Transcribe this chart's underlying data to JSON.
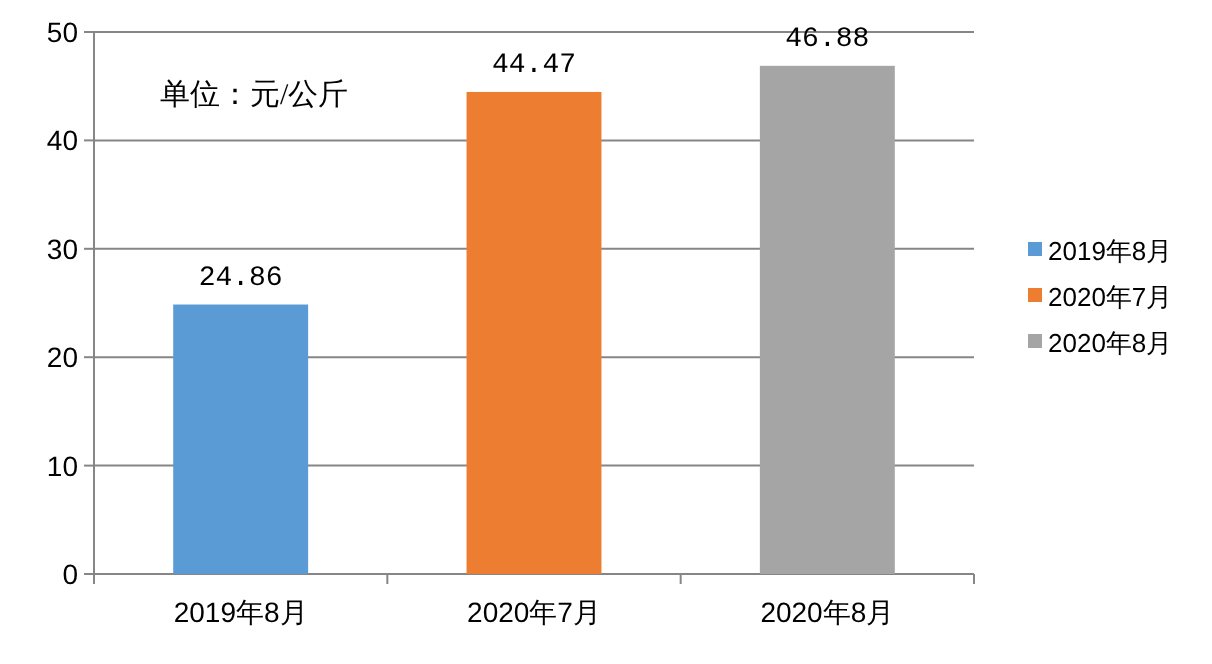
{
  "chart_data": {
    "type": "bar",
    "categories": [
      "2019年8月",
      "2020年7月",
      "2020年8月"
    ],
    "series": [
      {
        "name": "2019年8月",
        "color": "#5b9bd5",
        "values": [
          24.86,
          null,
          null
        ]
      },
      {
        "name": "2020年7月",
        "color": "#ed7d31",
        "values": [
          null,
          44.47,
          null
        ]
      },
      {
        "name": "2020年8月",
        "color": "#a5a5a5",
        "values": [
          null,
          null,
          46.88
        ]
      }
    ],
    "ylim": [
      0,
      50
    ],
    "yticks": [
      0,
      10,
      20,
      30,
      40,
      50
    ],
    "grid": "y",
    "legend": "right",
    "data_labels": true,
    "annotations": [
      "单位：元/公斤"
    ]
  }
}
